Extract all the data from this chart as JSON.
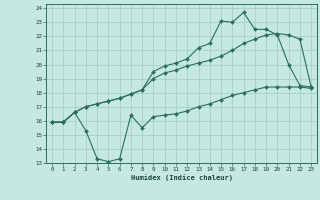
{
  "title": "",
  "xlabel": "Humidex (Indice chaleur)",
  "xlim": [
    0,
    23
  ],
  "ylim": [
    13,
    24
  ],
  "yticks": [
    13,
    14,
    15,
    16,
    17,
    18,
    19,
    20,
    21,
    22,
    23,
    24
  ],
  "xticks": [
    0,
    1,
    2,
    3,
    4,
    5,
    6,
    7,
    8,
    9,
    10,
    11,
    12,
    13,
    14,
    15,
    16,
    17,
    18,
    19,
    20,
    21,
    22,
    23
  ],
  "bg_color": "#c5e8e0",
  "grid_color": "#a8cfc8",
  "line_color": "#2a6e60",
  "line1_x": [
    0,
    1,
    2,
    3,
    4,
    5,
    6,
    7,
    8,
    9,
    10,
    11,
    12,
    13,
    14,
    15,
    16,
    17,
    18,
    19,
    20,
    21,
    22,
    23
  ],
  "line1_y": [
    15.9,
    15.9,
    16.6,
    15.3,
    13.3,
    13.1,
    13.3,
    16.4,
    15.5,
    16.3,
    16.4,
    16.5,
    16.7,
    17.0,
    17.2,
    17.5,
    17.8,
    18.0,
    18.2,
    18.4,
    18.4,
    18.4,
    18.4,
    18.3
  ],
  "line2_x": [
    0,
    1,
    2,
    3,
    4,
    5,
    6,
    7,
    8,
    9,
    10,
    11,
    12,
    13,
    14,
    15,
    16,
    17,
    18,
    19,
    20,
    21,
    22,
    23
  ],
  "line2_y": [
    15.9,
    15.9,
    16.6,
    17.0,
    17.2,
    17.4,
    17.6,
    17.9,
    18.2,
    19.0,
    19.4,
    19.6,
    19.9,
    20.1,
    20.3,
    20.6,
    21.0,
    21.5,
    21.8,
    22.1,
    22.2,
    22.1,
    21.8,
    18.4
  ],
  "line3_x": [
    0,
    1,
    2,
    3,
    4,
    5,
    6,
    7,
    8,
    9,
    10,
    11,
    12,
    13,
    14,
    15,
    16,
    17,
    18,
    19,
    20,
    21,
    22,
    23
  ],
  "line3_y": [
    15.9,
    15.9,
    16.6,
    17.0,
    17.2,
    17.4,
    17.6,
    17.9,
    18.2,
    19.5,
    19.9,
    20.1,
    20.4,
    21.2,
    21.5,
    23.1,
    23.0,
    23.7,
    22.5,
    22.5,
    22.1,
    20.0,
    18.5,
    18.4
  ]
}
